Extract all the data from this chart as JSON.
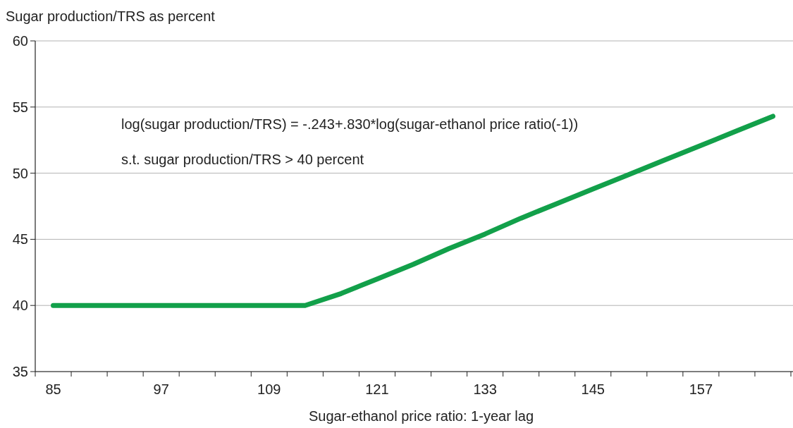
{
  "chart_data": {
    "type": "line",
    "ylabel": "Sugar production/TRS as percent",
    "xlabel": "Sugar-ethanol price ratio: 1-year lag",
    "annotations": [
      "log(sugar production/TRS) = -.243+.830*log(sugar-ethanol price ratio(-1))",
      "s.t. sugar production/TRS > 40 percent"
    ],
    "categories": [
      "85",
      null,
      null,
      "97",
      null,
      null,
      "109",
      null,
      null,
      "121",
      null,
      null,
      "133",
      null,
      null,
      "145",
      null,
      null,
      "157",
      null,
      null
    ],
    "series": [
      {
        "color": "#12a04a",
        "values": [
          40,
          40,
          40,
          40,
          40,
          40,
          40,
          40,
          40.9,
          42.0,
          43.1,
          44.3,
          45.4,
          46.6,
          47.7,
          48.8,
          49.9,
          51.0,
          52.1,
          53.2,
          54.3
        ]
      }
    ],
    "ylim": [
      35,
      60
    ],
    "yticks": [
      35,
      40,
      45,
      50,
      55,
      60
    ],
    "grid": "y",
    "line_style": "solid"
  }
}
